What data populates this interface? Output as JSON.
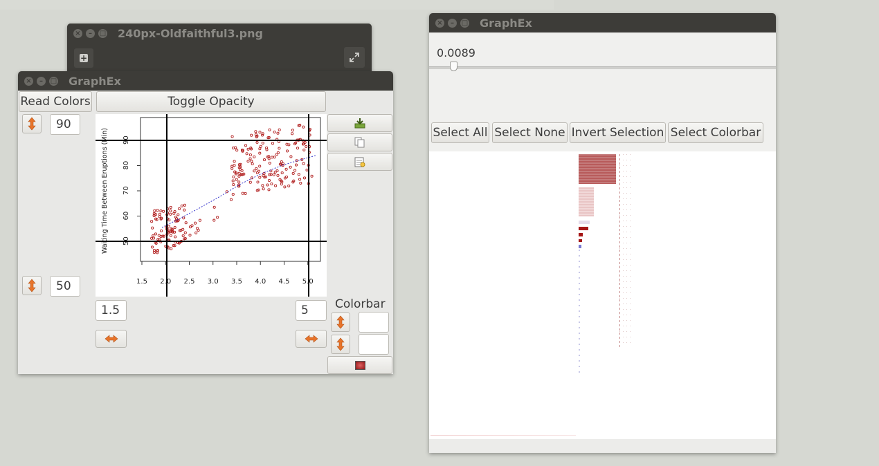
{
  "image_window": {
    "title": "240px-Oldfaithful3.png"
  },
  "left_window": {
    "title": "GraphEx",
    "read_colors_label": "Read Colors",
    "toggle_opacity_label": "Toggle Opacity",
    "y_max_value": "90",
    "y_min_value": "50",
    "x_min_value": "1.5",
    "x_max_value": "5",
    "colorbar_label": "Colorbar",
    "plot": {
      "ylabel": "Waiting Time Between Eruptions (Min)",
      "x_ticks": [
        "1.5",
        "2.0",
        "2.5",
        "3.0",
        "3.5",
        "4.0",
        "4.5",
        "5.0"
      ],
      "y_ticks": [
        "50",
        "60",
        "70",
        "80",
        "90"
      ]
    },
    "icons": {
      "vertical_arrows": "vertical-double-arrow-icon",
      "horizontal_arrows": "horizontal-double-arrow-icon",
      "save": "save-download-icon",
      "copy": "copy-icon",
      "paste": "paste-icon",
      "color_swatch": "color-swatch-icon"
    }
  },
  "right_window": {
    "title": "GraphEx",
    "slider_value": "0.0089",
    "slider_fraction": 0.07,
    "buttons": {
      "select_all": "Select All",
      "select_none": "Select None",
      "invert_selection": "Invert Selection",
      "select_colorbar": "Select Colorbar"
    }
  },
  "colors": {
    "title_bar": "#3d3c38",
    "window_bg": "#e8e8e6",
    "point_color": "#b22222",
    "fit_line": "#3333cc",
    "arrow_icon": "#e8742a"
  }
}
